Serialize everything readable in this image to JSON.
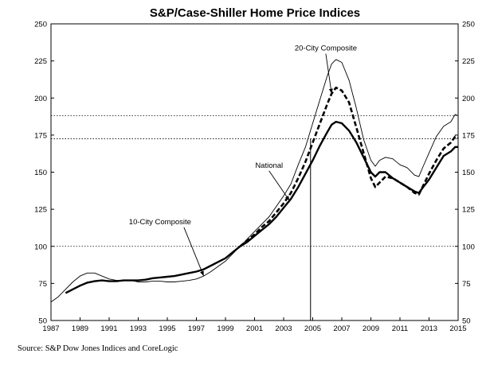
{
  "chart_data": {
    "type": "line",
    "title": "S&P/Case-Shiller Home Price Indices",
    "source": "Source: S&P Dow Jones Indices and CoreLogic",
    "xlim": [
      1987,
      2015
    ],
    "ylim": [
      50,
      250
    ],
    "x_ticks": [
      "1987",
      "1989",
      "1991",
      "1993",
      "1995",
      "1997",
      "1999",
      "2001",
      "2003",
      "2005",
      "2007",
      "2009",
      "2011",
      "2013",
      "2015"
    ],
    "y_ticks": [
      "50",
      "75",
      "100",
      "125",
      "150",
      "175",
      "200",
      "225",
      "250"
    ],
    "grid": false,
    "reference_lines": [
      100,
      172.5,
      188
    ],
    "vertical_marker_x": 2004.85,
    "annotations": [
      {
        "text": "20-City Composite",
        "series": "20-City Composite"
      },
      {
        "text": "National",
        "series": "National"
      },
      {
        "text": "10-City Composite",
        "series": "10-City Composite"
      }
    ],
    "series": [
      {
        "name": "10-City Composite",
        "style": "thin",
        "points": [
          [
            1987,
            62.5
          ],
          [
            1987.5,
            66
          ],
          [
            1988,
            71
          ],
          [
            1988.5,
            76
          ],
          [
            1989,
            80
          ],
          [
            1989.5,
            82
          ],
          [
            1990,
            82
          ],
          [
            1990.5,
            80
          ],
          [
            1991,
            78
          ],
          [
            1991.5,
            77
          ],
          [
            1992,
            77
          ],
          [
            1992.5,
            77
          ],
          [
            1993,
            76
          ],
          [
            1993.5,
            76
          ],
          [
            1994,
            76.5
          ],
          [
            1994.5,
            76.5
          ],
          [
            1995,
            76
          ],
          [
            1995.5,
            76
          ],
          [
            1996,
            76.5
          ],
          [
            1996.5,
            77
          ],
          [
            1997,
            78
          ],
          [
            1997.5,
            80
          ],
          [
            1998,
            83
          ],
          [
            1998.5,
            86.5
          ],
          [
            1999,
            90
          ],
          [
            1999.5,
            95
          ],
          [
            2000,
            100
          ],
          [
            2000.5,
            105
          ],
          [
            2001,
            110
          ],
          [
            2001.5,
            115
          ],
          [
            2002,
            120
          ],
          [
            2002.5,
            127
          ],
          [
            2003,
            134
          ],
          [
            2003.5,
            142
          ],
          [
            2004,
            155
          ],
          [
            2004.5,
            167
          ],
          [
            2005,
            183
          ],
          [
            2005.5,
            199
          ],
          [
            2006,
            215
          ],
          [
            2006.3,
            223
          ],
          [
            2006.6,
            226
          ],
          [
            2007,
            224
          ],
          [
            2007.5,
            212
          ],
          [
            2008,
            193
          ],
          [
            2008.5,
            172
          ],
          [
            2009,
            158
          ],
          [
            2009.3,
            154
          ],
          [
            2009.6,
            158
          ],
          [
            2010,
            160
          ],
          [
            2010.5,
            159
          ],
          [
            2011,
            155
          ],
          [
            2011.5,
            153
          ],
          [
            2012,
            148
          ],
          [
            2012.3,
            147
          ],
          [
            2012.6,
            154
          ],
          [
            2013,
            163
          ],
          [
            2013.5,
            174
          ],
          [
            2014,
            181
          ],
          [
            2014.5,
            184
          ],
          [
            2014.8,
            189
          ],
          [
            2015,
            188
          ]
        ]
      },
      {
        "name": "20-City Composite",
        "style": "dashed",
        "points": [
          [
            2000,
            100
          ],
          [
            2000.5,
            104
          ],
          [
            2001,
            108
          ],
          [
            2001.5,
            113
          ],
          [
            2002,
            117
          ],
          [
            2002.5,
            123
          ],
          [
            2003,
            129
          ],
          [
            2003.5,
            136
          ],
          [
            2004,
            146
          ],
          [
            2004.5,
            157
          ],
          [
            2005,
            170
          ],
          [
            2005.5,
            183
          ],
          [
            2006,
            196
          ],
          [
            2006.3,
            203
          ],
          [
            2006.6,
            207
          ],
          [
            2007,
            205
          ],
          [
            2007.5,
            197
          ],
          [
            2008,
            180
          ],
          [
            2008.5,
            163
          ],
          [
            2009,
            146
          ],
          [
            2009.3,
            140
          ],
          [
            2009.6,
            143
          ],
          [
            2010,
            147
          ],
          [
            2010.5,
            146
          ],
          [
            2011,
            143
          ],
          [
            2011.5,
            140
          ],
          [
            2012,
            136
          ],
          [
            2012.3,
            135
          ],
          [
            2012.6,
            141
          ],
          [
            2013,
            149
          ],
          [
            2013.5,
            158
          ],
          [
            2014,
            166
          ],
          [
            2014.5,
            170
          ],
          [
            2014.8,
            174
          ],
          [
            2015,
            173
          ]
        ]
      },
      {
        "name": "National",
        "style": "thick",
        "points": [
          [
            1988,
            68.5
          ],
          [
            1988.5,
            71
          ],
          [
            1989,
            73.5
          ],
          [
            1989.5,
            75.5
          ],
          [
            1990,
            76.5
          ],
          [
            1990.5,
            77
          ],
          [
            1991,
            76.5
          ],
          [
            1991.5,
            76.5
          ],
          [
            1992,
            77
          ],
          [
            1992.5,
            77
          ],
          [
            1993,
            77
          ],
          [
            1993.5,
            77.5
          ],
          [
            1994,
            78.5
          ],
          [
            1994.5,
            79
          ],
          [
            1995,
            79.5
          ],
          [
            1995.5,
            80
          ],
          [
            1996,
            81
          ],
          [
            1996.5,
            82
          ],
          [
            1997,
            83
          ],
          [
            1997.5,
            84.5
          ],
          [
            1998,
            87
          ],
          [
            1998.5,
            89.5
          ],
          [
            1999,
            92
          ],
          [
            1999.5,
            96
          ],
          [
            2000,
            100
          ],
          [
            2000.5,
            103
          ],
          [
            2001,
            107
          ],
          [
            2001.5,
            111
          ],
          [
            2002,
            115
          ],
          [
            2002.5,
            120
          ],
          [
            2003,
            126
          ],
          [
            2003.5,
            132
          ],
          [
            2004,
            140
          ],
          [
            2004.5,
            149
          ],
          [
            2005,
            158
          ],
          [
            2005.5,
            168
          ],
          [
            2006,
            177
          ],
          [
            2006.3,
            182
          ],
          [
            2006.6,
            184
          ],
          [
            2007,
            183
          ],
          [
            2007.5,
            178
          ],
          [
            2008,
            170
          ],
          [
            2008.5,
            160
          ],
          [
            2009,
            150
          ],
          [
            2009.3,
            147
          ],
          [
            2009.6,
            150
          ],
          [
            2010,
            150
          ],
          [
            2010.5,
            146
          ],
          [
            2011,
            143
          ],
          [
            2011.5,
            140
          ],
          [
            2012,
            137
          ],
          [
            2012.3,
            136
          ],
          [
            2012.6,
            140
          ],
          [
            2013,
            145
          ],
          [
            2013.5,
            153
          ],
          [
            2014,
            161
          ],
          [
            2014.5,
            164
          ],
          [
            2014.8,
            167
          ],
          [
            2015,
            167
          ]
        ]
      }
    ]
  }
}
